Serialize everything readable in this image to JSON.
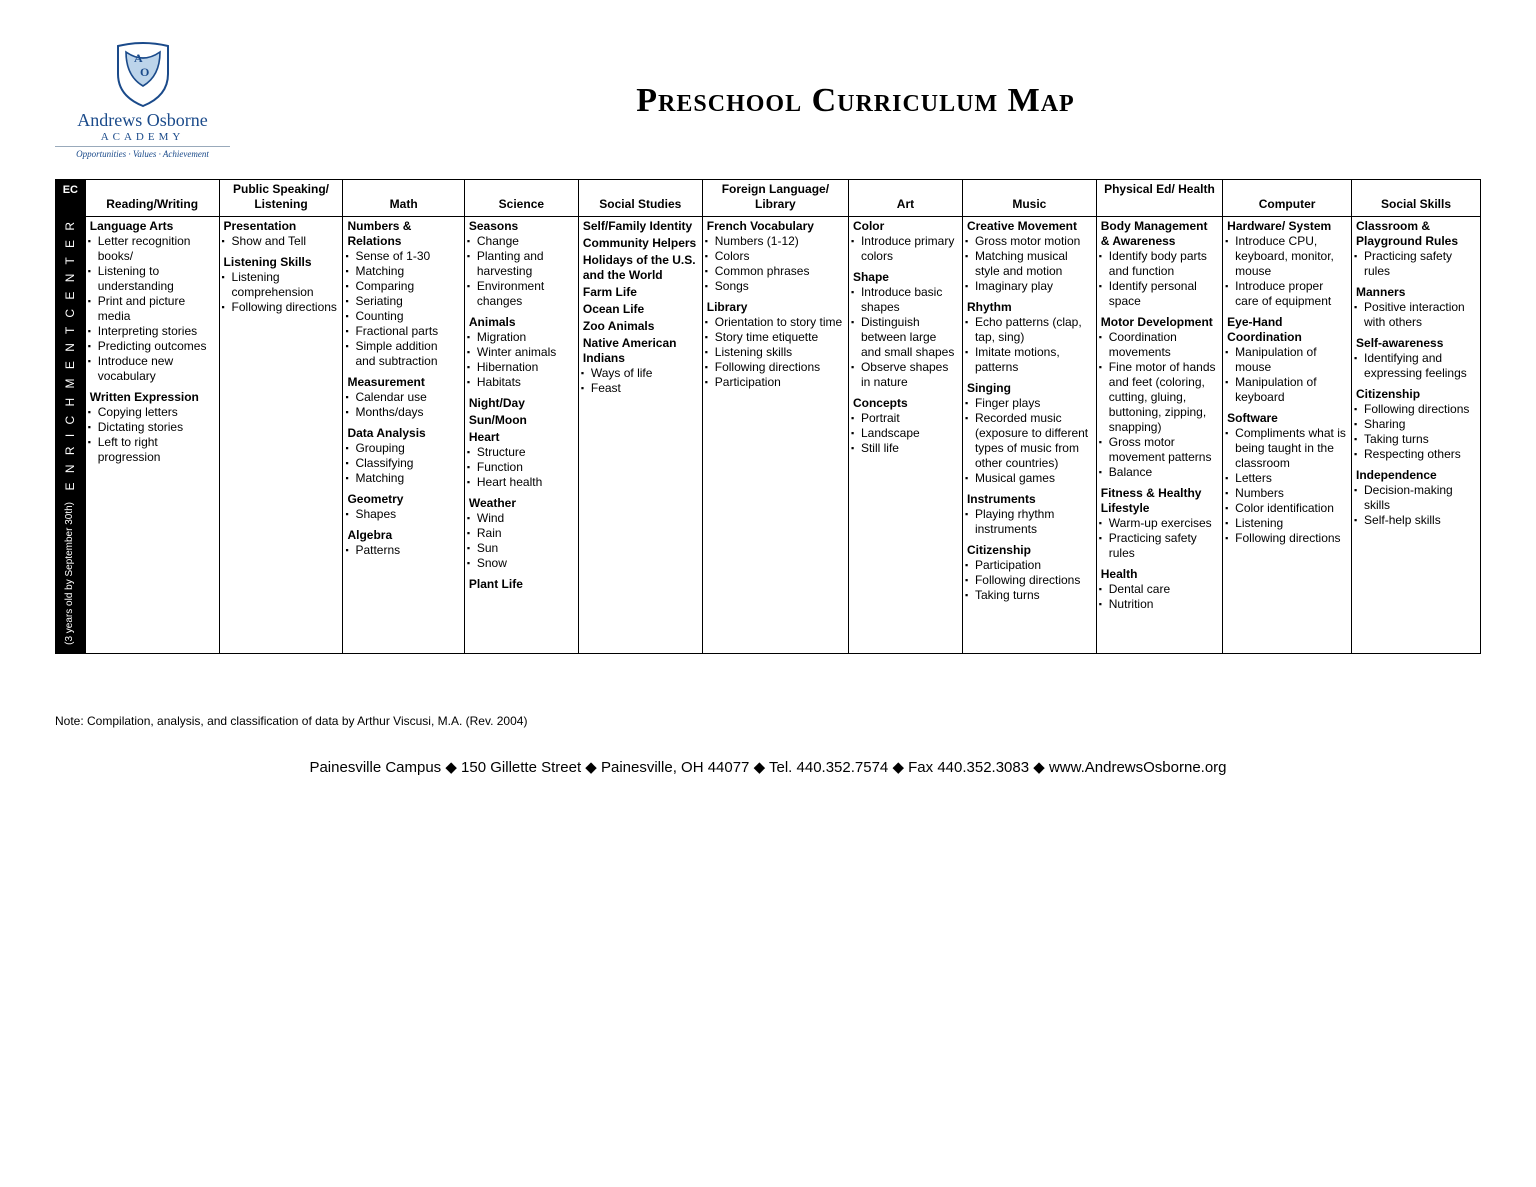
{
  "brand": {
    "name1": "Andrews Osborne",
    "name2": "ACADEMY",
    "tagline": "Opportunities · Values · Achievement"
  },
  "title": "Preschool Curriculum Map",
  "side": {
    "ec": "EC",
    "center": "E N R I C H M E N T   C E N T E R",
    "age": "(3 years old by September 30th)"
  },
  "headers": {
    "reading": "Reading/Writing",
    "speaking": "Public Speaking/ Listening",
    "math": "Math",
    "science": "Science",
    "social": "Social Studies",
    "library": "Foreign Language/ Library",
    "art": "Art",
    "music": "Music",
    "pe": "Physical Ed/ Health",
    "computer": "Computer",
    "skills": "Social Skills"
  },
  "cells": {
    "reading": [
      {
        "h": "Language Arts",
        "items": [
          "Letter recognition books/",
          "Listening to understanding",
          "Print and picture media",
          "Interpreting stories",
          "Predicting outcomes",
          "Introduce new vocabulary"
        ]
      },
      {
        "h": "Written Expression",
        "items": [
          "Copying letters",
          "Dictating stories",
          "Left to right progression"
        ]
      }
    ],
    "speaking": [
      {
        "h": "Presentation",
        "items": [
          "Show and Tell"
        ]
      },
      {
        "h": "Listening Skills",
        "items": [
          "Listening comprehension",
          "Following directions"
        ]
      }
    ],
    "math": [
      {
        "h": "Numbers & Relations",
        "items": [
          "Sense of 1-30",
          "Matching",
          "Comparing",
          "Seriating",
          "Counting",
          "Fractional parts",
          "Simple addition and subtraction"
        ]
      },
      {
        "h": "Measurement",
        "items": [
          "Calendar use",
          "Months/days"
        ]
      },
      {
        "h": "Data Analysis",
        "items": [
          "Grouping",
          "Classifying",
          "Matching"
        ]
      },
      {
        "h": "Geometry",
        "items": [
          "Shapes"
        ]
      },
      {
        "h": "Algebra",
        "items": [
          "Patterns"
        ]
      }
    ],
    "science": [
      {
        "h": "Seasons",
        "items": [
          "Change",
          "Planting and harvesting",
          "Environment changes"
        ]
      },
      {
        "h": "Animals",
        "items": [
          "Migration",
          "Winter animals",
          "Hibernation",
          "Habitats"
        ]
      },
      {
        "h": "Night/Day",
        "items": []
      },
      {
        "h": "Sun/Moon",
        "items": []
      },
      {
        "h": "Heart",
        "items": [
          "Structure",
          "Function",
          "Heart health"
        ]
      },
      {
        "h": "Weather",
        "items": [
          "Wind",
          "Rain",
          "Sun",
          "Snow"
        ]
      },
      {
        "h": "Plant Life",
        "items": []
      }
    ],
    "social": [
      {
        "h": "Self/Family Identity",
        "items": []
      },
      {
        "h": "Community Helpers",
        "items": []
      },
      {
        "h": "Holidays of the U.S. and the World",
        "items": []
      },
      {
        "h": "Farm Life",
        "items": []
      },
      {
        "h": "Ocean Life",
        "items": []
      },
      {
        "h": "Zoo Animals",
        "items": []
      },
      {
        "h": "Native American Indians",
        "items": [
          "Ways of life",
          "Feast"
        ]
      }
    ],
    "library": [
      {
        "h": "French Vocabulary",
        "items": [
          "Numbers (1-12)",
          "Colors",
          "Common phrases",
          "Songs"
        ]
      },
      {
        "h": "Library",
        "items": [
          "Orientation to story time",
          "Story time etiquette",
          "Listening skills",
          "Following directions",
          "Participation"
        ]
      }
    ],
    "art": [
      {
        "h": "Color",
        "items": [
          "Introduce primary colors"
        ]
      },
      {
        "h": "Shape",
        "items": [
          "Introduce basic shapes",
          "Distinguish between large and small shapes",
          "Observe shapes in nature"
        ]
      },
      {
        "h": "Concepts",
        "items": [
          "Portrait",
          "Landscape",
          "Still life"
        ]
      }
    ],
    "music": [
      {
        "h": "Creative Movement",
        "items": [
          "Gross motor motion",
          "Matching musical style and motion",
          "Imaginary play"
        ]
      },
      {
        "h": "Rhythm",
        "items": [
          "Echo patterns (clap, tap, sing)",
          "Imitate motions, patterns"
        ]
      },
      {
        "h": "Singing",
        "items": [
          "Finger plays",
          "Recorded music (exposure to different types of music from other countries)",
          "Musical games"
        ]
      },
      {
        "h": "Instruments",
        "items": [
          "Playing rhythm instruments"
        ]
      },
      {
        "h": "Citizenship",
        "items": [
          "Participation",
          "Following directions",
          "Taking turns"
        ]
      }
    ],
    "pe": [
      {
        "h": "Body Management & Awareness",
        "items": [
          "Identify body parts and function",
          "Identify personal space"
        ]
      },
      {
        "h": "Motor Development",
        "items": [
          "Coordination movements",
          "Fine motor of hands and feet (coloring, cutting, gluing, buttoning, zipping, snapping)",
          "Gross motor movement patterns",
          "Balance"
        ]
      },
      {
        "h": "Fitness & Healthy Lifestyle",
        "items": [
          "Warm-up exercises",
          "Practicing safety rules"
        ]
      },
      {
        "h": "Health",
        "items": [
          "Dental care",
          "Nutrition"
        ]
      }
    ],
    "computer": [
      {
        "h": "Hardware/ System",
        "items": [
          "Introduce CPU, keyboard, monitor, mouse",
          "Introduce proper care of equipment"
        ]
      },
      {
        "h": "Eye-Hand Coordination",
        "items": [
          "Manipulation of mouse",
          "Manipulation of keyboard"
        ]
      },
      {
        "h": "Software",
        "items": [
          "Compliments what is being taught in the classroom",
          "Letters",
          "Numbers",
          "Color identification",
          "Listening",
          "Following directions"
        ]
      }
    ],
    "skills": [
      {
        "h": "Classroom & Playground Rules",
        "items": [
          "Practicing safety rules"
        ]
      },
      {
        "h": "Manners",
        "items": [
          "Positive interaction with others"
        ]
      },
      {
        "h": "Self-awareness",
        "items": [
          "Identifying and expressing feelings"
        ]
      },
      {
        "h": "Citizenship",
        "items": [
          "Following directions",
          "Sharing",
          "Taking turns",
          "Respecting others"
        ]
      },
      {
        "h": "Independence",
        "items": [
          "Decision-making skills",
          "Self-help skills"
        ]
      }
    ]
  },
  "note": "Note: Compilation, analysis, and classification of data by Arthur Viscusi, M.A. (Rev. 2004)",
  "footer": "Painesville Campus  ◆  150 Gillette Street  ◆  Painesville, OH 44077  ◆  Tel. 440.352.7574  ◆  Fax 440.352.3083  ◆  www.AndrewsOsborne.org"
}
